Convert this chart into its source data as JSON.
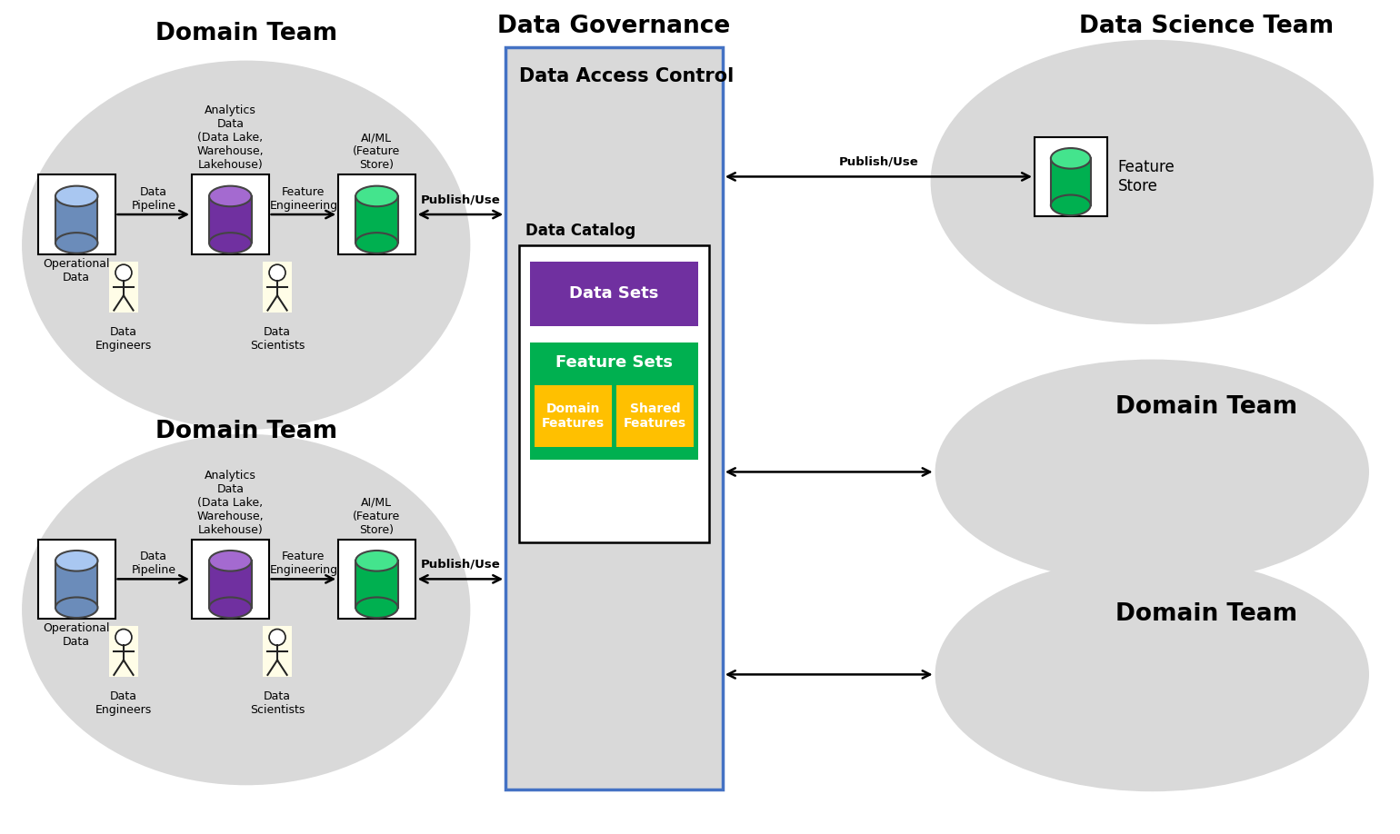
{
  "bg_color": "#ffffff",
  "light_gray": "#d9d9d9",
  "blue_cyl": "#6b8cba",
  "purple_cyl": "#7030a0",
  "green_cyl": "#00b050",
  "purple_box": "#7030a0",
  "green_box": "#00b050",
  "orange_box": "#ffc000",
  "governance_border": "#4472c4",
  "top_domain_title": "Domain Team",
  "bottom_domain_title": "Domain Team",
  "governance_title": "Data Governance",
  "ds_team_title": "Data Science Team",
  "domain_team2_title": "Domain Team",
  "domain_team3_title": "Domain Team",
  "access_control_title": "Data Access Control",
  "catalog_label": "Data Catalog",
  "datasets_label": "Data Sets",
  "featuresets_label": "Feature Sets",
  "domain_features_label": "Domain\nFeatures",
  "shared_features_label": "Shared\nFeatures",
  "publish_use_label": "Publish/Use",
  "op_data_label": "Operational\nData",
  "analytics_data_label": "Analytics\nData\n(Data Lake,\nWarehouse,\nLakehouse)",
  "aiml_label": "AI/ML\n(Feature\nStore)",
  "data_pipeline_label": "Data\nPipeline",
  "feature_eng_label": "Feature\nEngineering",
  "data_engineers_label": "Data\nEngineers",
  "data_scientists_label": "Data\nScientists",
  "feature_store_label": "Feature\nStore"
}
